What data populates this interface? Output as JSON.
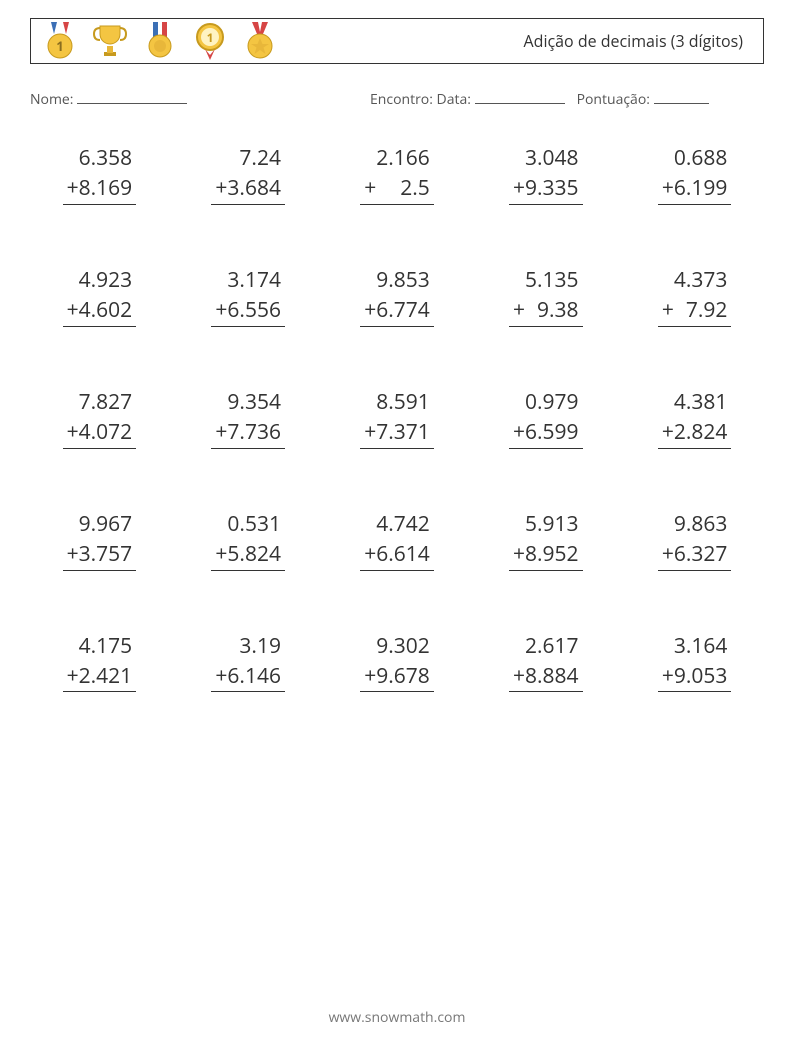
{
  "header": {
    "title": "Adição de decimais (3 dígitos)",
    "border_color": "#333333",
    "medal_icons": [
      "medal-badge-1",
      "trophy",
      "medal-ribbon",
      "medal-round-1",
      "medal-star"
    ]
  },
  "info": {
    "name_label": "Nome:",
    "encounter_label": "Encontro:",
    "date_label": "Data:",
    "score_label": "Pontuação:"
  },
  "worksheet": {
    "type": "math-addition-stacked",
    "operator": "+",
    "columns": 5,
    "rows": 5,
    "font_size_pt": 16,
    "number_color": "#333333",
    "problems": [
      {
        "a": "6.358",
        "b": "8.169"
      },
      {
        "a": "7.24",
        "b": "3.684"
      },
      {
        "a": "2.166",
        "b": "2.5"
      },
      {
        "a": "3.048",
        "b": "9.335"
      },
      {
        "a": "0.688",
        "b": "6.199"
      },
      {
        "a": "4.923",
        "b": "4.602"
      },
      {
        "a": "3.174",
        "b": "6.556"
      },
      {
        "a": "9.853",
        "b": "6.774"
      },
      {
        "a": "5.135",
        "b": "9.38"
      },
      {
        "a": "4.373",
        "b": "7.92"
      },
      {
        "a": "7.827",
        "b": "4.072"
      },
      {
        "a": "9.354",
        "b": "7.736"
      },
      {
        "a": "8.591",
        "b": "7.371"
      },
      {
        "a": "0.979",
        "b": "6.599"
      },
      {
        "a": "4.381",
        "b": "2.824"
      },
      {
        "a": "9.967",
        "b": "3.757"
      },
      {
        "a": "0.531",
        "b": "5.824"
      },
      {
        "a": "4.742",
        "b": "6.614"
      },
      {
        "a": "5.913",
        "b": "8.952"
      },
      {
        "a": "9.863",
        "b": "6.327"
      },
      {
        "a": "4.175",
        "b": "2.421"
      },
      {
        "a": "3.19",
        "b": "6.146"
      },
      {
        "a": "9.302",
        "b": "9.678"
      },
      {
        "a": "2.617",
        "b": "8.884"
      },
      {
        "a": "3.164",
        "b": "9.053"
      }
    ]
  },
  "footer": {
    "text": "www.snowmath.com",
    "color": "#777777"
  },
  "colors": {
    "background": "#ffffff",
    "text": "#333333",
    "muted": "#555555"
  }
}
